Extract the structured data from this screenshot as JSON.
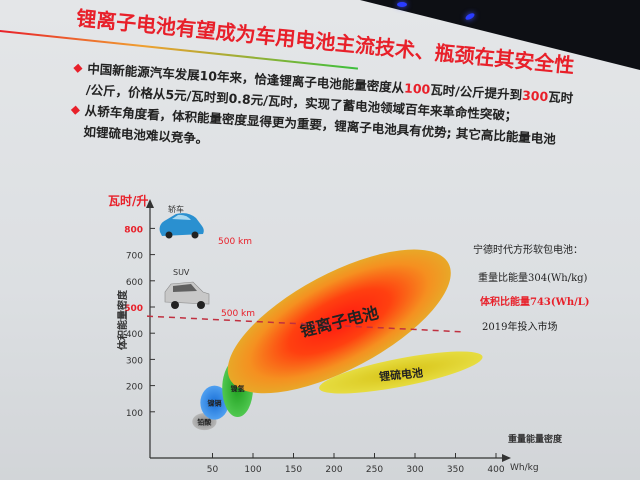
{
  "slide": {
    "title": "锂离子电池有望成为车用电池主流技术、瓶颈在其安全性",
    "bullets": [
      {
        "lines": [
          [
            "中国新能源汽车发展10年来，恰逢锂离子电池能量密度从",
            "100",
            "瓦时/公斤提升到",
            "300",
            "瓦时"
          ],
          [
            "/公斤，价格从5元/瓦时到0.8元/瓦时，实现了蓄电池领域百年来革命性突破；"
          ]
        ]
      },
      {
        "lines": [
          [
            "从轿车角度看，体积能量密度显得更为重要，锂离子电池具有优势; 其它高比能量电池"
          ],
          [
            "如锂硫电池难以竞争。"
          ]
        ]
      }
    ],
    "bullet_icon": "red-diamond-icon"
  },
  "chart_data": {
    "type": "region-scatter",
    "ylabel": "体积能量密度",
    "yunit": "瓦时/升",
    "xlabel": "重量能量密度",
    "xunit": "Wh/kg",
    "xticks": [
      50,
      100,
      150,
      200,
      250,
      300,
      350,
      400
    ],
    "yticks": [
      100,
      200,
      300,
      400,
      500,
      600,
      700,
      800
    ],
    "xlim": [
      0,
      400
    ],
    "ylim": [
      0,
      800
    ],
    "highlight_yticks": [
      500,
      800
    ],
    "regions": [
      {
        "name": "铅酸",
        "x": [
          25,
          55
        ],
        "y": [
          30,
          95
        ],
        "color": "#9a9a9a"
      },
      {
        "name": "镍镉",
        "x": [
          35,
          70
        ],
        "y": [
          70,
          200
        ],
        "color": "#2a7fe0"
      },
      {
        "name": "镍氢",
        "x": [
          62,
          100
        ],
        "y": [
          80,
          300
        ],
        "color": "#30b030"
      },
      {
        "name": "锂离子电池",
        "x": [
          78,
          335
        ],
        "y": [
          190,
          700
        ],
        "color": "#ff2a10"
      },
      {
        "name": "锂硫电池",
        "x": [
          185,
          380
        ],
        "y": [
          150,
          350
        ],
        "color": "#e0d020"
      }
    ],
    "reference_line": {
      "label": "500 km",
      "y_start": 465,
      "y_end": 405,
      "x": [
        0,
        360
      ],
      "color": "#c03040"
    },
    "car_annotations": [
      {
        "label": "轿车",
        "range": "500 km",
        "icon": "sedan-car-icon",
        "level": 800
      },
      {
        "label": "SUV",
        "range": "500 km",
        "icon": "suv-car-icon",
        "level": 500
      }
    ],
    "legend_note": {
      "heading": "宁德时代方形软包电池：",
      "gravimetric": "重量比能量304(Wh/kg)",
      "volumetric": "体积比能量743(Wh/L)",
      "market": "2019年投入市场"
    },
    "colors": {
      "accent": "#e8202a"
    }
  }
}
